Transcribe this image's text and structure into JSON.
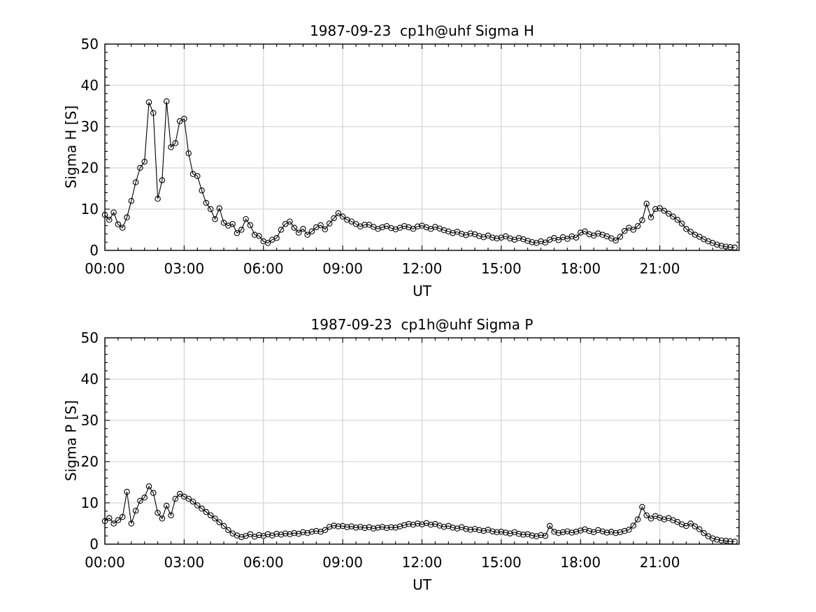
{
  "figure": {
    "background": "#ffffff"
  },
  "chart_data": [
    {
      "type": "line",
      "title": "1987-09-23  cp1h@uhf Sigma H",
      "xlabel": "UT",
      "ylabel": "Sigma H [S]",
      "ylim": [
        0,
        50
      ],
      "xlim_hours": [
        0,
        24
      ],
      "x_tick_hours": [
        0,
        3,
        6,
        9,
        12,
        15,
        18,
        21
      ],
      "x_tick_labels": [
        "00:00",
        "03:00",
        "06:00",
        "09:00",
        "12:00",
        "15:00",
        "18:00",
        "21:00"
      ],
      "y_ticks": [
        0,
        10,
        20,
        30,
        40,
        50
      ],
      "x_minor_step_hours": 0.5,
      "y_minor_step": 2,
      "grid": true,
      "legend": "none",
      "marker": "open-circle",
      "line_color": "#000000",
      "axis_color": "#000000",
      "text_color": "#000000",
      "grid_color": "#cccccc",
      "x_start_minutes": 0,
      "x_step_minutes": 10,
      "values": [
        8.6,
        7.4,
        9.2,
        6.3,
        5.5,
        8.0,
        12.0,
        16.5,
        20.0,
        21.5,
        35.9,
        33.3,
        12.5,
        17.0,
        36.1,
        25.0,
        26.0,
        31.3,
        31.9,
        23.5,
        18.5,
        18.0,
        14.5,
        11.5,
        10.0,
        7.6,
        10.2,
        6.7,
        6.0,
        6.4,
        4.2,
        5.0,
        7.6,
        6.1,
        3.8,
        3.5,
        2.2,
        1.8,
        2.6,
        3.0,
        5.0,
        6.4,
        7.0,
        5.5,
        4.3,
        5.2,
        3.8,
        4.6,
        5.6,
        6.1,
        5.1,
        6.5,
        7.8,
        9.0,
        8.2,
        7.4,
        7.0,
        6.4,
        5.8,
        6.2,
        6.2,
        5.7,
        5.2,
        5.6,
        5.9,
        5.4,
        5.1,
        5.5,
        5.9,
        5.6,
        5.2,
        5.8,
        6.0,
        5.6,
        5.2,
        5.7,
        5.3,
        4.9,
        4.6,
        4.2,
        4.5,
        4.0,
        3.7,
        4.1,
        3.9,
        3.5,
        3.2,
        3.6,
        3.1,
        2.9,
        3.1,
        3.4,
        2.9,
        2.6,
        3.0,
        2.7,
        2.3,
        2.0,
        1.8,
        2.2,
        1.9,
        2.6,
        3.0,
        2.5,
        3.2,
        2.8,
        3.4,
        3.1,
        4.3,
        4.6,
        3.9,
        3.6,
        4.1,
        3.8,
        3.4,
        2.9,
        2.4,
        3.3,
        4.7,
        5.5,
        5.0,
        5.9,
        7.3,
        11.3,
        8.0,
        10.0,
        10.2,
        9.6,
        8.9,
        8.2,
        7.4,
        6.5,
        5.2,
        4.5,
        3.8,
        3.3,
        2.7,
        2.2,
        1.8,
        1.4,
        1.1,
        0.9,
        0.8,
        0.7
      ]
    },
    {
      "type": "line",
      "title": "1987-09-23  cp1h@uhf Sigma P",
      "xlabel": "UT",
      "ylabel": "Sigma P [S]",
      "ylim": [
        0,
        50
      ],
      "xlim_hours": [
        0,
        24
      ],
      "x_tick_hours": [
        0,
        3,
        6,
        9,
        12,
        15,
        18,
        21
      ],
      "x_tick_labels": [
        "00:00",
        "03:00",
        "06:00",
        "09:00",
        "12:00",
        "15:00",
        "18:00",
        "21:00"
      ],
      "y_ticks": [
        0,
        10,
        20,
        30,
        40,
        50
      ],
      "x_minor_step_hours": 0.5,
      "y_minor_step": 2,
      "grid": true,
      "legend": "none",
      "marker": "open-circle",
      "line_color": "#000000",
      "axis_color": "#000000",
      "text_color": "#000000",
      "grid_color": "#cccccc",
      "x_start_minutes": 0,
      "x_step_minutes": 10,
      "values": [
        5.6,
        6.3,
        5.0,
        5.8,
        6.6,
        12.7,
        5.0,
        8.1,
        10.5,
        11.3,
        14.0,
        12.4,
        7.6,
        6.2,
        9.3,
        7.0,
        11.0,
        12.2,
        11.5,
        11.0,
        10.3,
        9.4,
        8.6,
        7.8,
        7.0,
        6.2,
        5.3,
        4.4,
        3.4,
        2.6,
        2.1,
        1.7,
        2.0,
        2.4,
        1.8,
        2.2,
        2.0,
        2.4,
        2.1,
        2.5,
        2.3,
        2.6,
        2.4,
        2.7,
        2.5,
        2.9,
        2.7,
        3.0,
        3.2,
        3.0,
        3.4,
        4.2,
        4.5,
        4.3,
        4.4,
        4.1,
        4.3,
        4.0,
        4.2,
        3.9,
        4.1,
        3.8,
        4.0,
        4.2,
        3.9,
        4.1,
        4.0,
        4.3,
        4.6,
        4.9,
        4.7,
        5.0,
        4.8,
        5.1,
        4.7,
        4.9,
        4.5,
        4.2,
        4.4,
        4.0,
        3.8,
        4.1,
        3.7,
        3.5,
        3.7,
        3.4,
        3.2,
        3.5,
        3.1,
        2.9,
        3.0,
        2.8,
        2.6,
        2.9,
        2.5,
        2.3,
        2.4,
        2.1,
        1.9,
        2.2,
        2.0,
        4.4,
        3.0,
        2.7,
        2.9,
        3.1,
        2.8,
        3.0,
        3.3,
        3.6,
        3.2,
        2.9,
        3.4,
        3.1,
        2.8,
        3.0,
        2.7,
        2.9,
        3.2,
        3.5,
        4.5,
        6.0,
        9.0,
        7.0,
        6.2,
        6.8,
        6.4,
        6.0,
        6.3,
        5.8,
        5.4,
        4.8,
        4.4,
        5.0,
        4.3,
        3.6,
        2.7,
        1.9,
        1.4,
        1.1,
        0.9,
        0.8,
        0.7,
        0.6
      ]
    }
  ]
}
